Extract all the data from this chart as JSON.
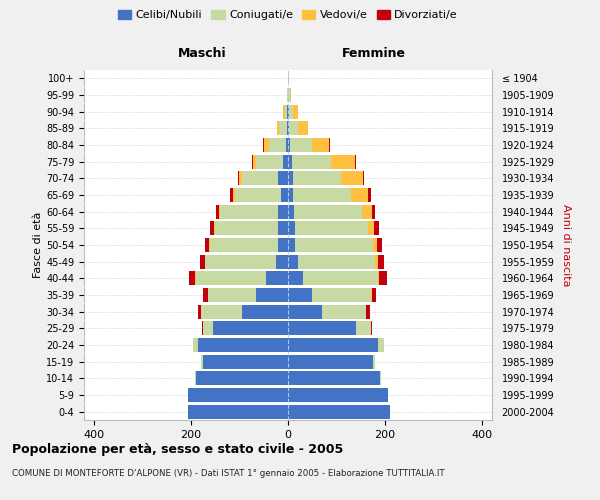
{
  "age_groups": [
    "0-4",
    "5-9",
    "10-14",
    "15-19",
    "20-24",
    "25-29",
    "30-34",
    "35-39",
    "40-44",
    "45-49",
    "50-54",
    "55-59",
    "60-64",
    "65-69",
    "70-74",
    "75-79",
    "80-84",
    "85-89",
    "90-94",
    "95-99",
    "100+"
  ],
  "birth_years": [
    "2000-2004",
    "1995-1999",
    "1990-1994",
    "1985-1989",
    "1980-1984",
    "1975-1979",
    "1970-1974",
    "1965-1969",
    "1960-1964",
    "1955-1959",
    "1950-1954",
    "1945-1949",
    "1940-1944",
    "1935-1939",
    "1930-1934",
    "1925-1929",
    "1920-1924",
    "1915-1919",
    "1910-1914",
    "1905-1909",
    "≤ 1904"
  ],
  "males": {
    "celibo": [
      205,
      205,
      190,
      175,
      185,
      155,
      95,
      65,
      45,
      25,
      20,
      20,
      20,
      15,
      20,
      10,
      5,
      3,
      2,
      1,
      1
    ],
    "coniugati": [
      0,
      1,
      2,
      5,
      10,
      20,
      85,
      100,
      145,
      145,
      140,
      130,
      120,
      95,
      75,
      55,
      35,
      15,
      5,
      2,
      0
    ],
    "vedovi": [
      0,
      0,
      0,
      0,
      0,
      0,
      0,
      0,
      1,
      1,
      2,
      2,
      3,
      4,
      5,
      8,
      10,
      5,
      3,
      0,
      0
    ],
    "divorziati": [
      0,
      0,
      0,
      0,
      1,
      2,
      5,
      10,
      12,
      10,
      8,
      8,
      5,
      5,
      2,
      1,
      1,
      0,
      0,
      0,
      0
    ]
  },
  "females": {
    "celiba": [
      210,
      205,
      190,
      175,
      185,
      140,
      70,
      50,
      30,
      20,
      15,
      15,
      12,
      10,
      10,
      8,
      5,
      3,
      2,
      1,
      1
    ],
    "coniugate": [
      0,
      1,
      2,
      5,
      12,
      30,
      90,
      120,
      155,
      160,
      160,
      150,
      140,
      120,
      100,
      80,
      45,
      18,
      8,
      3,
      0
    ],
    "vedove": [
      0,
      0,
      0,
      0,
      0,
      0,
      1,
      2,
      3,
      5,
      8,
      12,
      20,
      35,
      45,
      50,
      35,
      20,
      10,
      3,
      1
    ],
    "divorziate": [
      0,
      0,
      0,
      0,
      1,
      3,
      8,
      10,
      15,
      12,
      10,
      10,
      8,
      5,
      2,
      1,
      1,
      0,
      0,
      0,
      0
    ]
  },
  "color_celibo": "#4472c4",
  "color_coniugati": "#c8daa4",
  "color_vedovi": "#ffc040",
  "color_divorziati": "#c0000c",
  "xlim": 420,
  "background_color": "#f0f0f0",
  "plot_bg": "#ffffff",
  "title": "Popolazione per età, sesso e stato civile - 2005",
  "subtitle": "COMUNE DI MONTEFORTE D'ALPONE (VR) - Dati ISTAT 1° gennaio 2005 - Elaborazione TUTTITALIA.IT",
  "ylabel_left": "Fasce di età",
  "ylabel_right": "Anni di nascita",
  "label_maschi": "Maschi",
  "label_femmine": "Femmine",
  "legend_labels": [
    "Celibi/Nubili",
    "Coniugati/e",
    "Vedovi/e",
    "Divorziati/e"
  ]
}
